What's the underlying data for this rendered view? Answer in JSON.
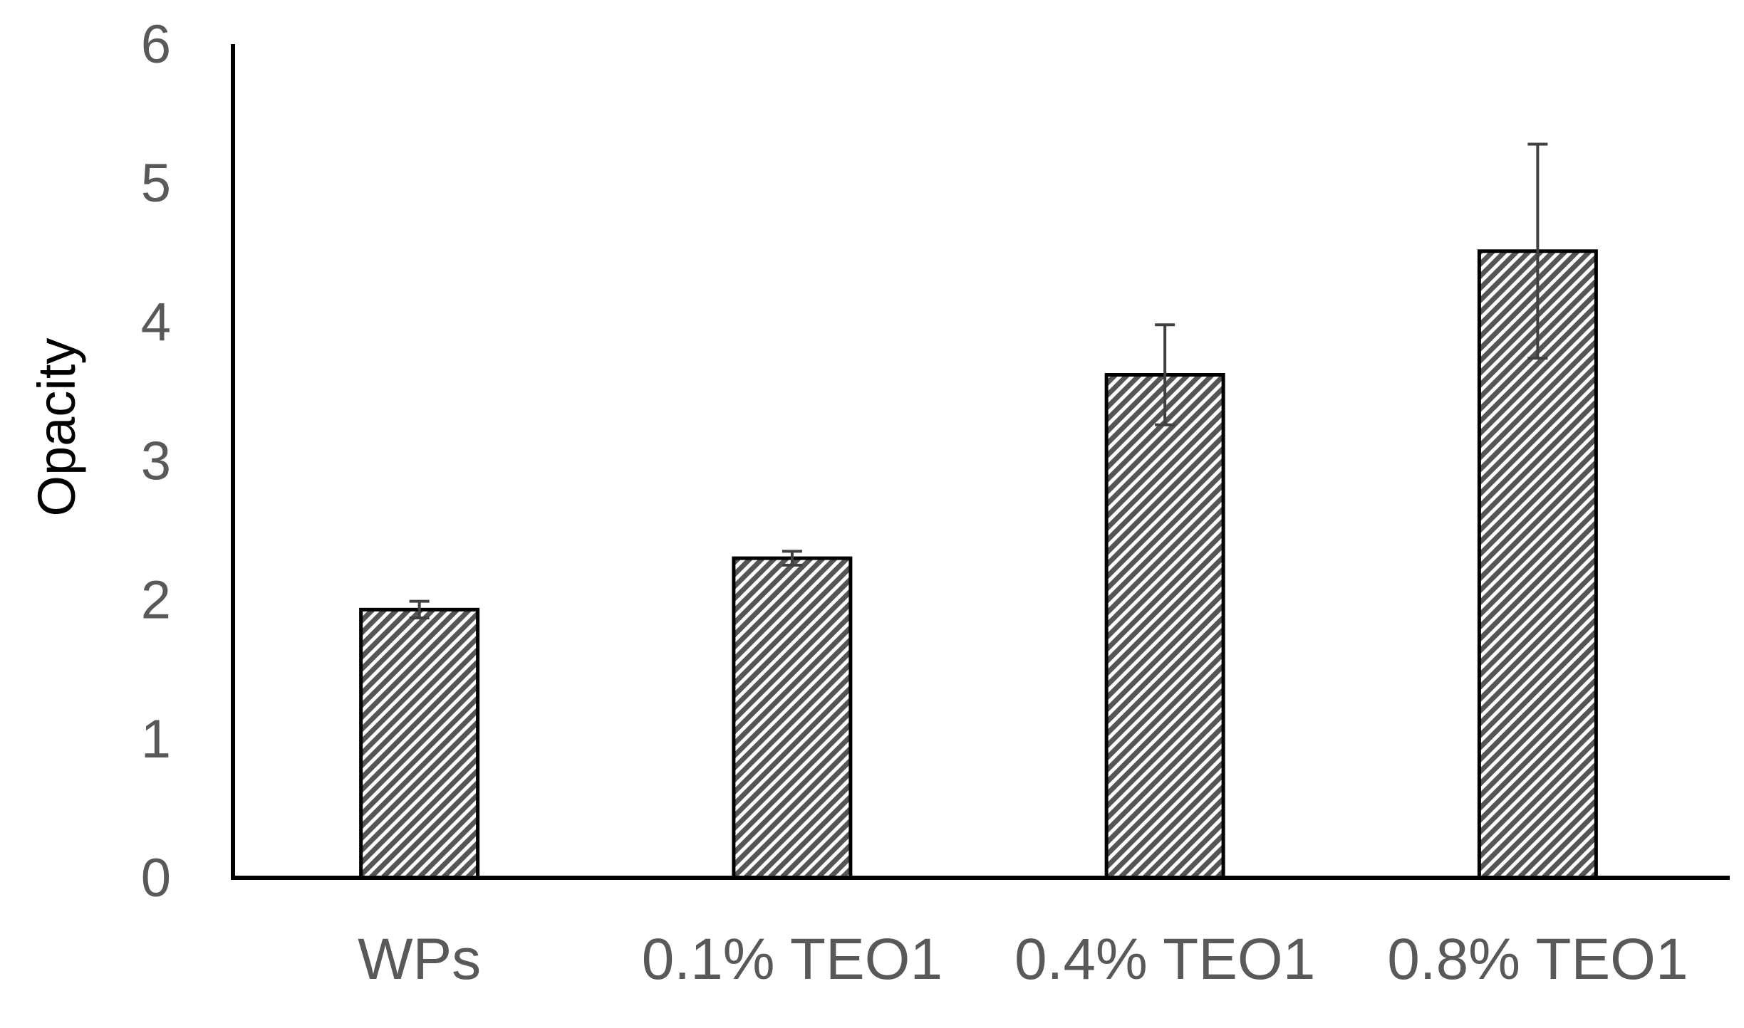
{
  "chart_data": {
    "type": "bar",
    "title": "",
    "xlabel": "",
    "ylabel": "Opacity",
    "categories": [
      "WPs",
      "0.1% TEO1",
      "0.4% TEO1",
      "0.8% TEO1"
    ],
    "values": [
      1.93,
      2.3,
      3.62,
      4.51
    ],
    "errors": [
      0.06,
      0.05,
      0.36,
      0.77
    ],
    "ylim": [
      0,
      6
    ],
    "yticks": [
      0,
      1,
      2,
      3,
      4,
      5,
      6
    ],
    "grid": false,
    "legend": "none",
    "bar_fill": "hatched-gray",
    "colors": {
      "bar_stroke": "#000000",
      "hatch": "#555555",
      "error_bar": "#404040",
      "axis": "#000000",
      "tick_text": "#595959"
    }
  }
}
